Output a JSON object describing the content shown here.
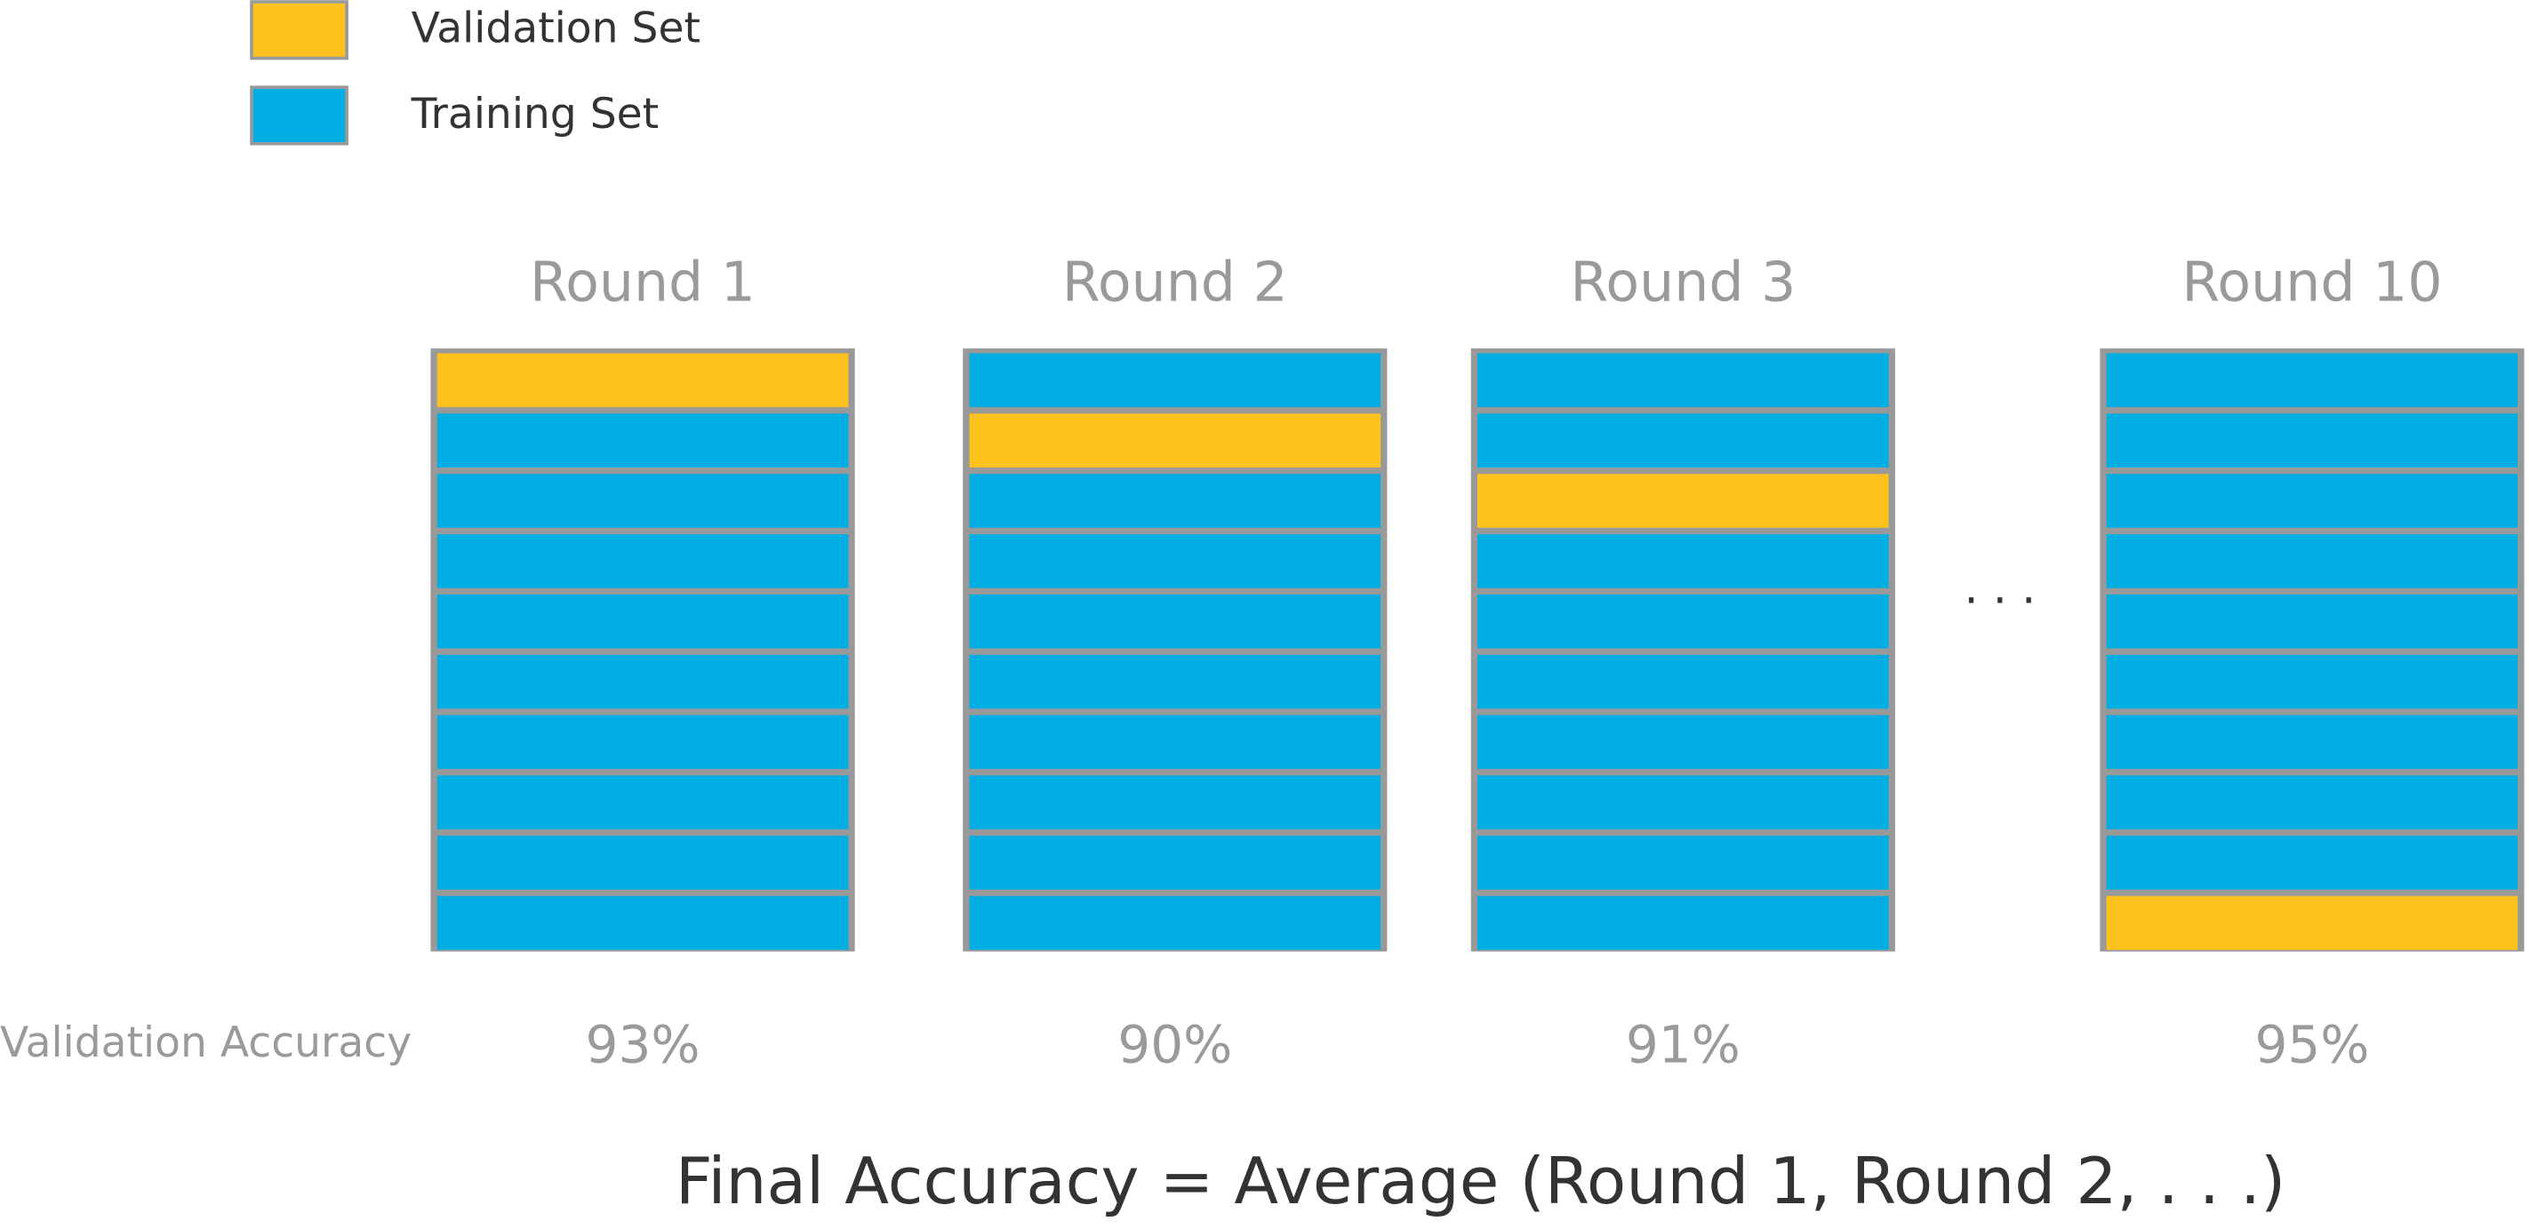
{
  "legend": [
    {
      "label": "Validation Set",
      "color": "#fdc21d"
    },
    {
      "label": "Training Set",
      "color": "#00aee3"
    }
  ],
  "fold_count": 10,
  "rounds": [
    {
      "label": "Round 1",
      "validation_fold": 1,
      "accuracy": "93%"
    },
    {
      "label": "Round 2",
      "validation_fold": 2,
      "accuracy": "90%"
    },
    {
      "label": "Round 3",
      "validation_fold": 3,
      "accuracy": "91%"
    },
    {
      "label": "Round 10",
      "validation_fold": 10,
      "accuracy": "95%"
    }
  ],
  "ellipsis": "· · ·",
  "row_label": "Validation Accuracy",
  "formula": "Final Accuracy = Average (Round 1, Round 2, . . .)"
}
